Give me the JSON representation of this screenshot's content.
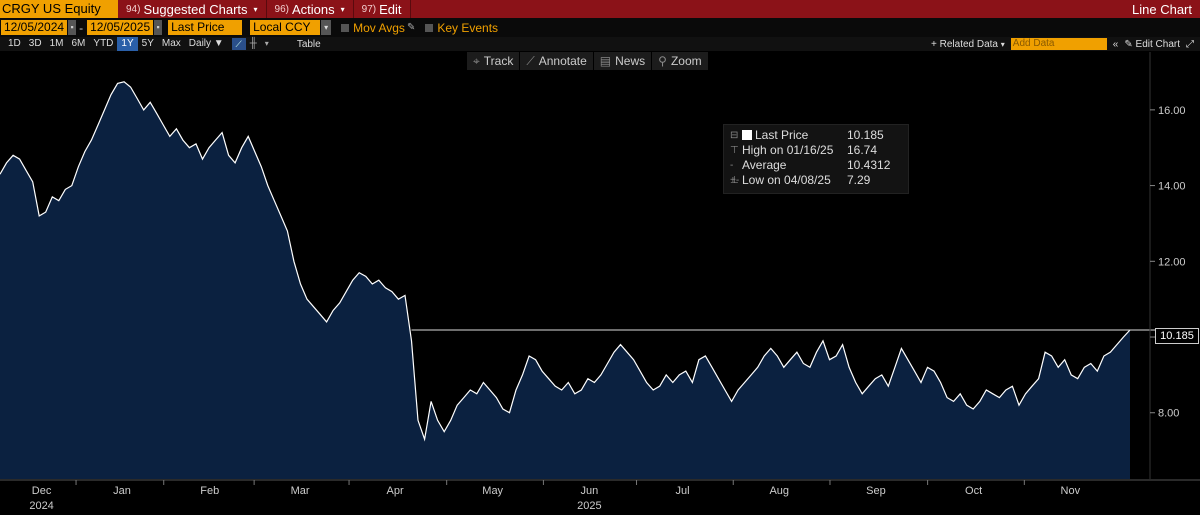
{
  "header": {
    "ticker": "CRGY US Equity",
    "menus": [
      {
        "num": "94)",
        "label": "Suggested Charts"
      },
      {
        "num": "96)",
        "label": "Actions"
      },
      {
        "num": "97)",
        "label": "Edit"
      }
    ],
    "chart_mode": "Line Chart"
  },
  "controls": {
    "start_date": "12/05/2024",
    "end_date": "12/05/2025",
    "field": "Last Price",
    "currency": "Local CCY",
    "mov_avgs": "Mov Avgs",
    "key_events": "Key Events"
  },
  "periods": [
    "1D",
    "3D",
    "1M",
    "6M",
    "YTD",
    "1Y",
    "5Y",
    "Max"
  ],
  "active_period": "1Y",
  "frequency": "Daily",
  "table_label": "Table",
  "related_data": "Related Data",
  "add_data_placeholder": "Add Data",
  "edit_chart": "Edit Chart",
  "chart_tools": [
    "Track",
    "Annotate",
    "News",
    "Zoom"
  ],
  "legend": {
    "rows": [
      {
        "label": "Last Price",
        "value": "10.185"
      },
      {
        "label": "High on 01/16/25",
        "value": "16.74"
      },
      {
        "label": "Average",
        "value": "10.4312"
      },
      {
        "label": "Low on 04/08/25",
        "value": "7.29"
      }
    ]
  },
  "last_value_label": "10.185",
  "colors": {
    "line": "#ffffff",
    "fill": "#0b2140",
    "accent": "#f0a000",
    "topbar": "#8b1218"
  },
  "chart_data": {
    "type": "area",
    "title": "",
    "xlabel": "",
    "ylabel": "",
    "ylim": [
      6.25,
      17.0
    ],
    "yticks": [
      8.0,
      10.0,
      12.0,
      14.0,
      16.0
    ],
    "ytick_labels": [
      "8.00",
      "10.00",
      "12.00",
      "14.00",
      "16.00"
    ],
    "xticks": [
      {
        "label": "Dec",
        "sub": "2024",
        "t": 0.046
      },
      {
        "label": "Jan",
        "sub": "",
        "t": 0.135
      },
      {
        "label": "Feb",
        "sub": "",
        "t": 0.232
      },
      {
        "label": "Mar",
        "sub": "",
        "t": 0.332
      },
      {
        "label": "Apr",
        "sub": "",
        "t": 0.437
      },
      {
        "label": "May",
        "sub": "",
        "t": 0.545
      },
      {
        "label": "Jun",
        "sub": "2025",
        "t": 0.652
      },
      {
        "label": "Jul",
        "sub": "",
        "t": 0.755
      },
      {
        "label": "Aug",
        "sub": "",
        "t": 0.862
      },
      {
        "label": "Sep",
        "sub": "",
        "t": 0.969
      },
      {
        "label": "Oct",
        "sub": "",
        "t": 1.077
      },
      {
        "label": "Nov",
        "sub": "",
        "t": 1.184
      }
    ],
    "series": [
      {
        "values": [
          14.3,
          14.6,
          14.8,
          14.7,
          14.4,
          14.1,
          13.2,
          13.3,
          13.7,
          13.6,
          13.9,
          14.0,
          14.5,
          14.9,
          15.2,
          15.6,
          16.0,
          16.4,
          16.7,
          16.74,
          16.6,
          16.3,
          16.0,
          16.2,
          15.9,
          15.6,
          15.3,
          15.5,
          15.2,
          15.0,
          15.1,
          14.7,
          15.0,
          15.2,
          15.4,
          14.8,
          14.6,
          15.0,
          15.3,
          14.9,
          14.5,
          14.0,
          13.6,
          13.2,
          12.8,
          12.0,
          11.4,
          11.0,
          10.8,
          10.6,
          10.4,
          10.7,
          10.9,
          11.2,
          11.5,
          11.7,
          11.6,
          11.4,
          11.5,
          11.3,
          11.2,
          11.0,
          11.1,
          9.9,
          7.8,
          7.3,
          8.3,
          7.8,
          7.5,
          7.8,
          8.2,
          8.4,
          8.6,
          8.5,
          8.8,
          8.6,
          8.4,
          8.1,
          8.0,
          8.6,
          9.0,
          9.5,
          9.4,
          9.1,
          8.9,
          8.7,
          8.6,
          8.8,
          8.5,
          8.6,
          8.9,
          8.8,
          9.0,
          9.3,
          9.6,
          9.8,
          9.6,
          9.4,
          9.1,
          8.8,
          8.6,
          8.7,
          9.0,
          8.8,
          9.0,
          9.1,
          8.8,
          9.4,
          9.5,
          9.2,
          8.9,
          8.6,
          8.3,
          8.6,
          8.8,
          9.0,
          9.2,
          9.5,
          9.7,
          9.5,
          9.2,
          9.4,
          9.6,
          9.3,
          9.2,
          9.6,
          9.9,
          9.4,
          9.5,
          9.8,
          9.2,
          8.8,
          8.5,
          8.7,
          8.9,
          9.0,
          8.7,
          9.2,
          9.7,
          9.4,
          9.1,
          8.8,
          9.2,
          9.1,
          8.8,
          8.4,
          8.3,
          8.5,
          8.2,
          8.1,
          8.3,
          8.6,
          8.5,
          8.4,
          8.6,
          8.7,
          8.2,
          8.5,
          8.7,
          8.9,
          9.6,
          9.5,
          9.2,
          9.4,
          9.0,
          8.9,
          9.2,
          9.3,
          9.1,
          9.5,
          9.6,
          9.8,
          10.0,
          10.185
        ]
      }
    ]
  }
}
